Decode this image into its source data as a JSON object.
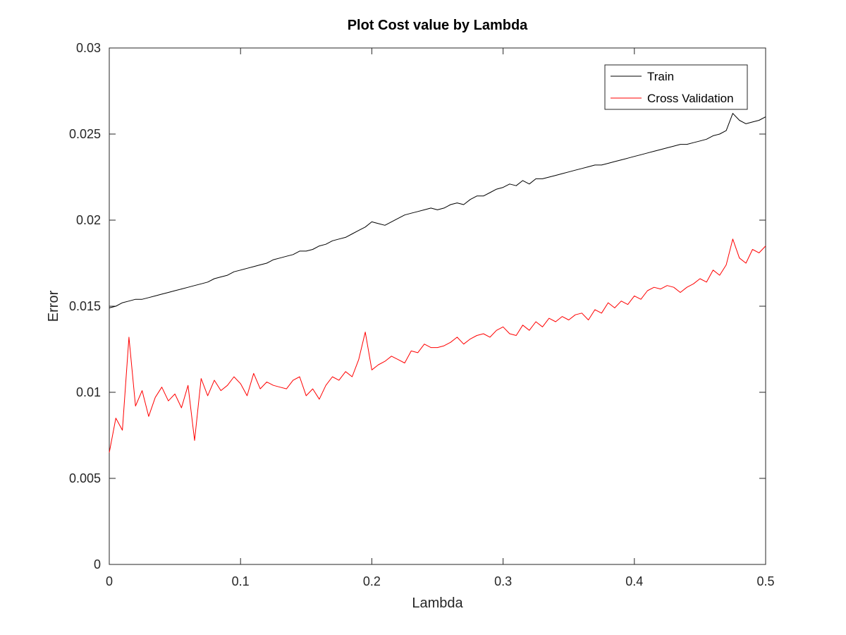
{
  "chart_data": {
    "type": "line",
    "title": "Plot Cost value by Lambda",
    "xlabel": "Lambda",
    "ylabel": "Error",
    "xlim": [
      0,
      0.5
    ],
    "ylim": [
      0,
      0.03
    ],
    "x_ticks": [
      0,
      0.1,
      0.2,
      0.3,
      0.4,
      0.5
    ],
    "x_tick_labels": [
      "0",
      "0.1",
      "0.2",
      "0.3",
      "0.4",
      "0.5"
    ],
    "y_ticks": [
      0,
      0.005,
      0.01,
      0.015,
      0.02,
      0.025,
      0.03
    ],
    "y_tick_labels": [
      "0",
      "0.005",
      "0.01",
      "0.015",
      "0.02",
      "0.025",
      "0.03"
    ],
    "grid": false,
    "legend_position": "top-right",
    "x": [
      0,
      0.005,
      0.01,
      0.015,
      0.02,
      0.025,
      0.03,
      0.035,
      0.04,
      0.045,
      0.05,
      0.055,
      0.06,
      0.065,
      0.07,
      0.075,
      0.08,
      0.085,
      0.09,
      0.095,
      0.1,
      0.105,
      0.11,
      0.115,
      0.12,
      0.125,
      0.13,
      0.135,
      0.14,
      0.145,
      0.15,
      0.155,
      0.16,
      0.165,
      0.17,
      0.175,
      0.18,
      0.185,
      0.19,
      0.195,
      0.2,
      0.205,
      0.21,
      0.215,
      0.22,
      0.225,
      0.23,
      0.235,
      0.24,
      0.245,
      0.25,
      0.255,
      0.26,
      0.265,
      0.27,
      0.275,
      0.28,
      0.285,
      0.29,
      0.295,
      0.3,
      0.305,
      0.31,
      0.315,
      0.32,
      0.325,
      0.33,
      0.335,
      0.34,
      0.345,
      0.35,
      0.355,
      0.36,
      0.365,
      0.37,
      0.375,
      0.38,
      0.385,
      0.39,
      0.395,
      0.4,
      0.405,
      0.41,
      0.415,
      0.42,
      0.425,
      0.43,
      0.435,
      0.44,
      0.445,
      0.45,
      0.455,
      0.46,
      0.465,
      0.47,
      0.475,
      0.48,
      0.485,
      0.49,
      0.495,
      0.5
    ],
    "series": [
      {
        "name": "Train",
        "color": "#000000",
        "values": [
          0.0149,
          0.015,
          0.0152,
          0.0153,
          0.0154,
          0.0154,
          0.0155,
          0.0156,
          0.0157,
          0.0158,
          0.0159,
          0.016,
          0.0161,
          0.0162,
          0.0163,
          0.0164,
          0.0166,
          0.0167,
          0.0168,
          0.017,
          0.0171,
          0.0172,
          0.0173,
          0.0174,
          0.0175,
          0.0177,
          0.0178,
          0.0179,
          0.018,
          0.0182,
          0.0182,
          0.0183,
          0.0185,
          0.0186,
          0.0188,
          0.0189,
          0.019,
          0.0192,
          0.0194,
          0.0196,
          0.0199,
          0.0198,
          0.0197,
          0.0199,
          0.0201,
          0.0203,
          0.0204,
          0.0205,
          0.0206,
          0.0207,
          0.0206,
          0.0207,
          0.0209,
          0.021,
          0.0209,
          0.0212,
          0.0214,
          0.0214,
          0.0216,
          0.0218,
          0.0219,
          0.0221,
          0.022,
          0.0223,
          0.0221,
          0.0224,
          0.0224,
          0.0225,
          0.0226,
          0.0227,
          0.0228,
          0.0229,
          0.023,
          0.0231,
          0.0232,
          0.0232,
          0.0233,
          0.0234,
          0.0235,
          0.0236,
          0.0237,
          0.0238,
          0.0239,
          0.024,
          0.0241,
          0.0242,
          0.0243,
          0.0244,
          0.0244,
          0.0245,
          0.0246,
          0.0247,
          0.0249,
          0.025,
          0.0252,
          0.0262,
          0.0258,
          0.0256,
          0.0257,
          0.0258,
          0.026
        ]
      },
      {
        "name": "Cross Validation",
        "color": "#ff0000",
        "values": [
          0.0065,
          0.0085,
          0.0078,
          0.0132,
          0.0092,
          0.0101,
          0.0086,
          0.0097,
          0.0103,
          0.0095,
          0.0099,
          0.0091,
          0.0104,
          0.0072,
          0.0108,
          0.0098,
          0.0107,
          0.0101,
          0.0104,
          0.0109,
          0.0105,
          0.0098,
          0.0111,
          0.0102,
          0.0106,
          0.0104,
          0.0103,
          0.0102,
          0.0107,
          0.0109,
          0.0098,
          0.0102,
          0.0096,
          0.0104,
          0.0109,
          0.0107,
          0.0112,
          0.0109,
          0.0119,
          0.0135,
          0.0113,
          0.0116,
          0.0118,
          0.0121,
          0.0119,
          0.0117,
          0.0124,
          0.0123,
          0.0128,
          0.0126,
          0.0126,
          0.0127,
          0.0129,
          0.0132,
          0.0128,
          0.0131,
          0.0133,
          0.0134,
          0.0132,
          0.0136,
          0.0138,
          0.0134,
          0.0133,
          0.0139,
          0.0136,
          0.0141,
          0.0138,
          0.0143,
          0.0141,
          0.0144,
          0.0142,
          0.0145,
          0.0146,
          0.0142,
          0.0148,
          0.0146,
          0.0152,
          0.0149,
          0.0153,
          0.0151,
          0.0156,
          0.0154,
          0.0159,
          0.0161,
          0.016,
          0.0162,
          0.0161,
          0.0158,
          0.0161,
          0.0163,
          0.0166,
          0.0164,
          0.0171,
          0.0168,
          0.0174,
          0.0189,
          0.0178,
          0.0175,
          0.0183,
          0.0181,
          0.0185
        ]
      }
    ]
  }
}
